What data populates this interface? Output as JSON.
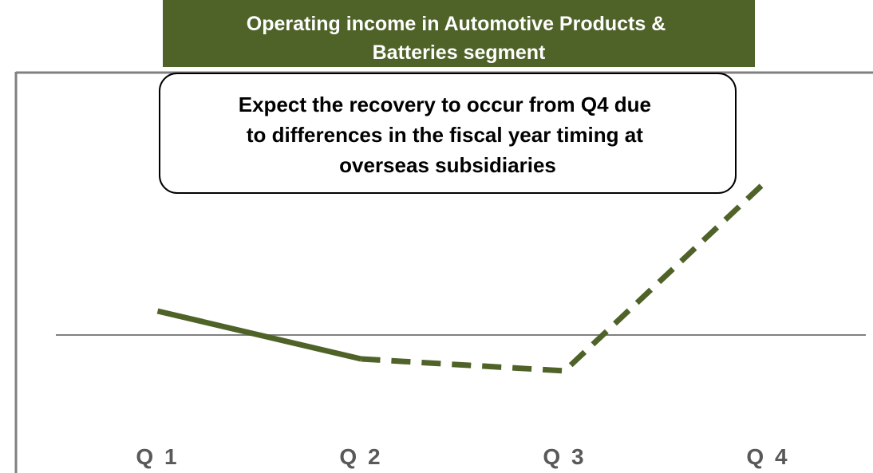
{
  "chart_data": {
    "type": "line",
    "title": [
      "Operating income in Automotive Products &",
      "Batteries segment"
    ],
    "annotation": [
      "Expect the recovery to occur from Q4 due",
      "to differences in the fiscal year timing at",
      "overseas subsidiaries"
    ],
    "categories": [
      "Q 1",
      "Q 2",
      "Q 3",
      "Q 4"
    ],
    "values": [
      1,
      -1,
      -1.5,
      6.5
    ],
    "color": "#4f6228",
    "dashed_from_index": 1,
    "ylim": [
      -5.5,
      11
    ]
  }
}
